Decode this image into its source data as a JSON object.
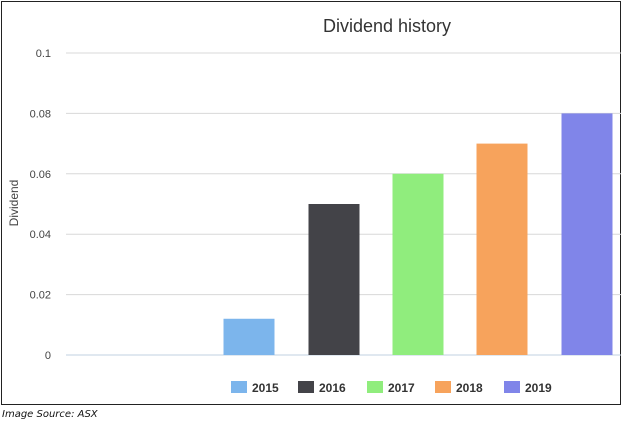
{
  "chart_data": {
    "type": "bar",
    "title": "Dividend history",
    "ylabel": "Dividend",
    "xlabel": "",
    "ylim": [
      0,
      0.1
    ],
    "yticks": [
      "0",
      "0.02",
      "0.04",
      "0.06",
      "0.08",
      "0.1"
    ],
    "grid": true,
    "legend_position": "bottom",
    "series": [
      {
        "name": "2015",
        "value": 0.012,
        "color": "#7cb5ec"
      },
      {
        "name": "2016",
        "value": 0.05,
        "color": "#434348"
      },
      {
        "name": "2017",
        "value": 0.06,
        "color": "#90ed7d"
      },
      {
        "name": "2018",
        "value": 0.07,
        "color": "#f7a35c"
      },
      {
        "name": "2019",
        "value": 0.08,
        "color": "#8085e9"
      }
    ]
  },
  "source_note": "Image Source: ASX"
}
